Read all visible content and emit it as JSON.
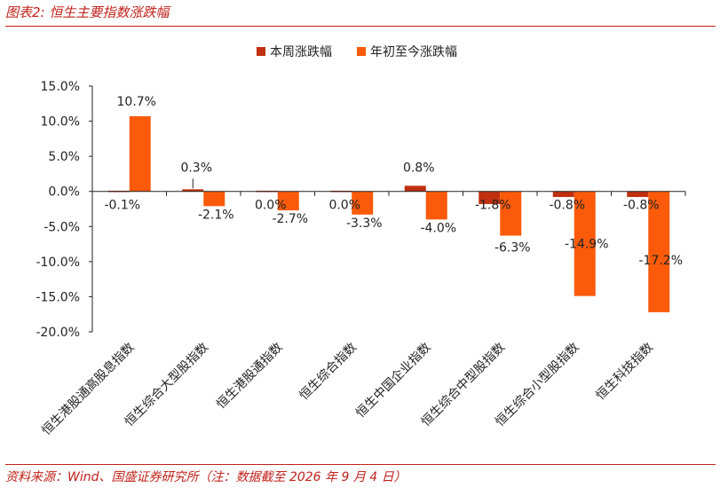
{
  "figure": {
    "title": "图表2:  恒生主要指数涨跌幅",
    "source": "资料来源：Wind、国盛证券研究所（注：数据截至 2026 年 9 月 4 日）"
  },
  "colors": {
    "accent": "#c0221b",
    "series_week": "#c0300f",
    "series_ytd": "#fa5a0a"
  },
  "chart_data": {
    "type": "bar",
    "categories": [
      "恒生港股通高股息指数",
      "恒生综合大型股指数",
      "恒生港股通指数",
      "恒生综合指数",
      "恒生中国企业指数",
      "恒生综合中型股指数",
      "恒生综合小型股指数",
      "恒生科技指数"
    ],
    "series": [
      {
        "name": "本周涨跌幅",
        "values": [
          -0.1,
          0.3,
          0.0,
          0.0,
          0.8,
          -1.8,
          -0.8,
          -0.8
        ],
        "labels": [
          "-0.1%",
          "0.3%",
          "0.0%",
          "0.0%",
          "0.8%",
          "-1.8%",
          "-0.8%",
          "-0.8%"
        ]
      },
      {
        "name": "年初至今涨跌幅",
        "values": [
          10.7,
          -2.1,
          -2.7,
          -3.3,
          -4.0,
          -6.3,
          -14.9,
          -17.2
        ],
        "labels": [
          "10.7%",
          "-2.1%",
          "-2.7%",
          "-3.3%",
          "-4.0%",
          "-6.3%",
          "-14.9%",
          "-17.2%"
        ]
      }
    ],
    "ylim": [
      -20,
      15
    ],
    "yticks": [
      15,
      10,
      5,
      0,
      -5,
      -10,
      -15,
      -20
    ],
    "ytick_labels": [
      "15.0%",
      "10.0%",
      "5.0%",
      "0.0%",
      "-5.0%",
      "-10.0%",
      "-15.0%",
      "-20.0%"
    ],
    "legend_position": "top-center",
    "grid": false
  }
}
